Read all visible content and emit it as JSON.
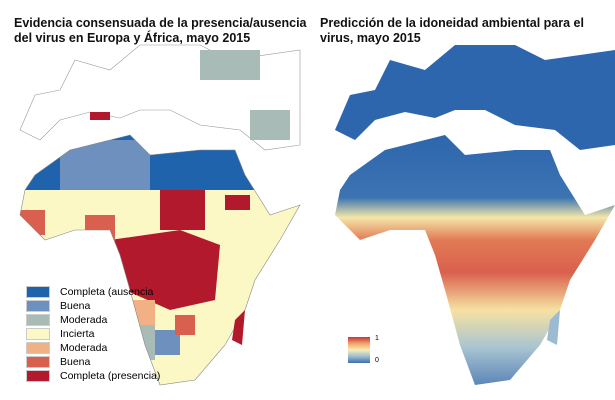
{
  "left_map": {
    "title": "Evidencia consensuada de la presencia/ausencia del virus en Europa y África, mayo 2015",
    "legend": [
      {
        "label": "Completa (ausencia",
        "color": "#2063ad"
      },
      {
        "label": "Buena",
        "color": "#6e90bf"
      },
      {
        "label": "Moderada",
        "color": "#a9bbb6"
      },
      {
        "label": "Incierta",
        "color": "#fbf8c6"
      },
      {
        "label": "Moderada",
        "color": "#f2b185"
      },
      {
        "label": "Buena",
        "color": "#d9604e"
      },
      {
        "label": "Completa (presencia)",
        "color": "#b3192c"
      }
    ]
  },
  "right_map": {
    "title": "Predicción de la idoneidad ambiental para el virus, mayo 2015",
    "colorbar": {
      "max_label": "1",
      "min_label": "0",
      "colors": [
        "#c9333a",
        "#f1a36c",
        "#f7efb7",
        "#9dbbd0",
        "#3b6fae"
      ]
    }
  }
}
